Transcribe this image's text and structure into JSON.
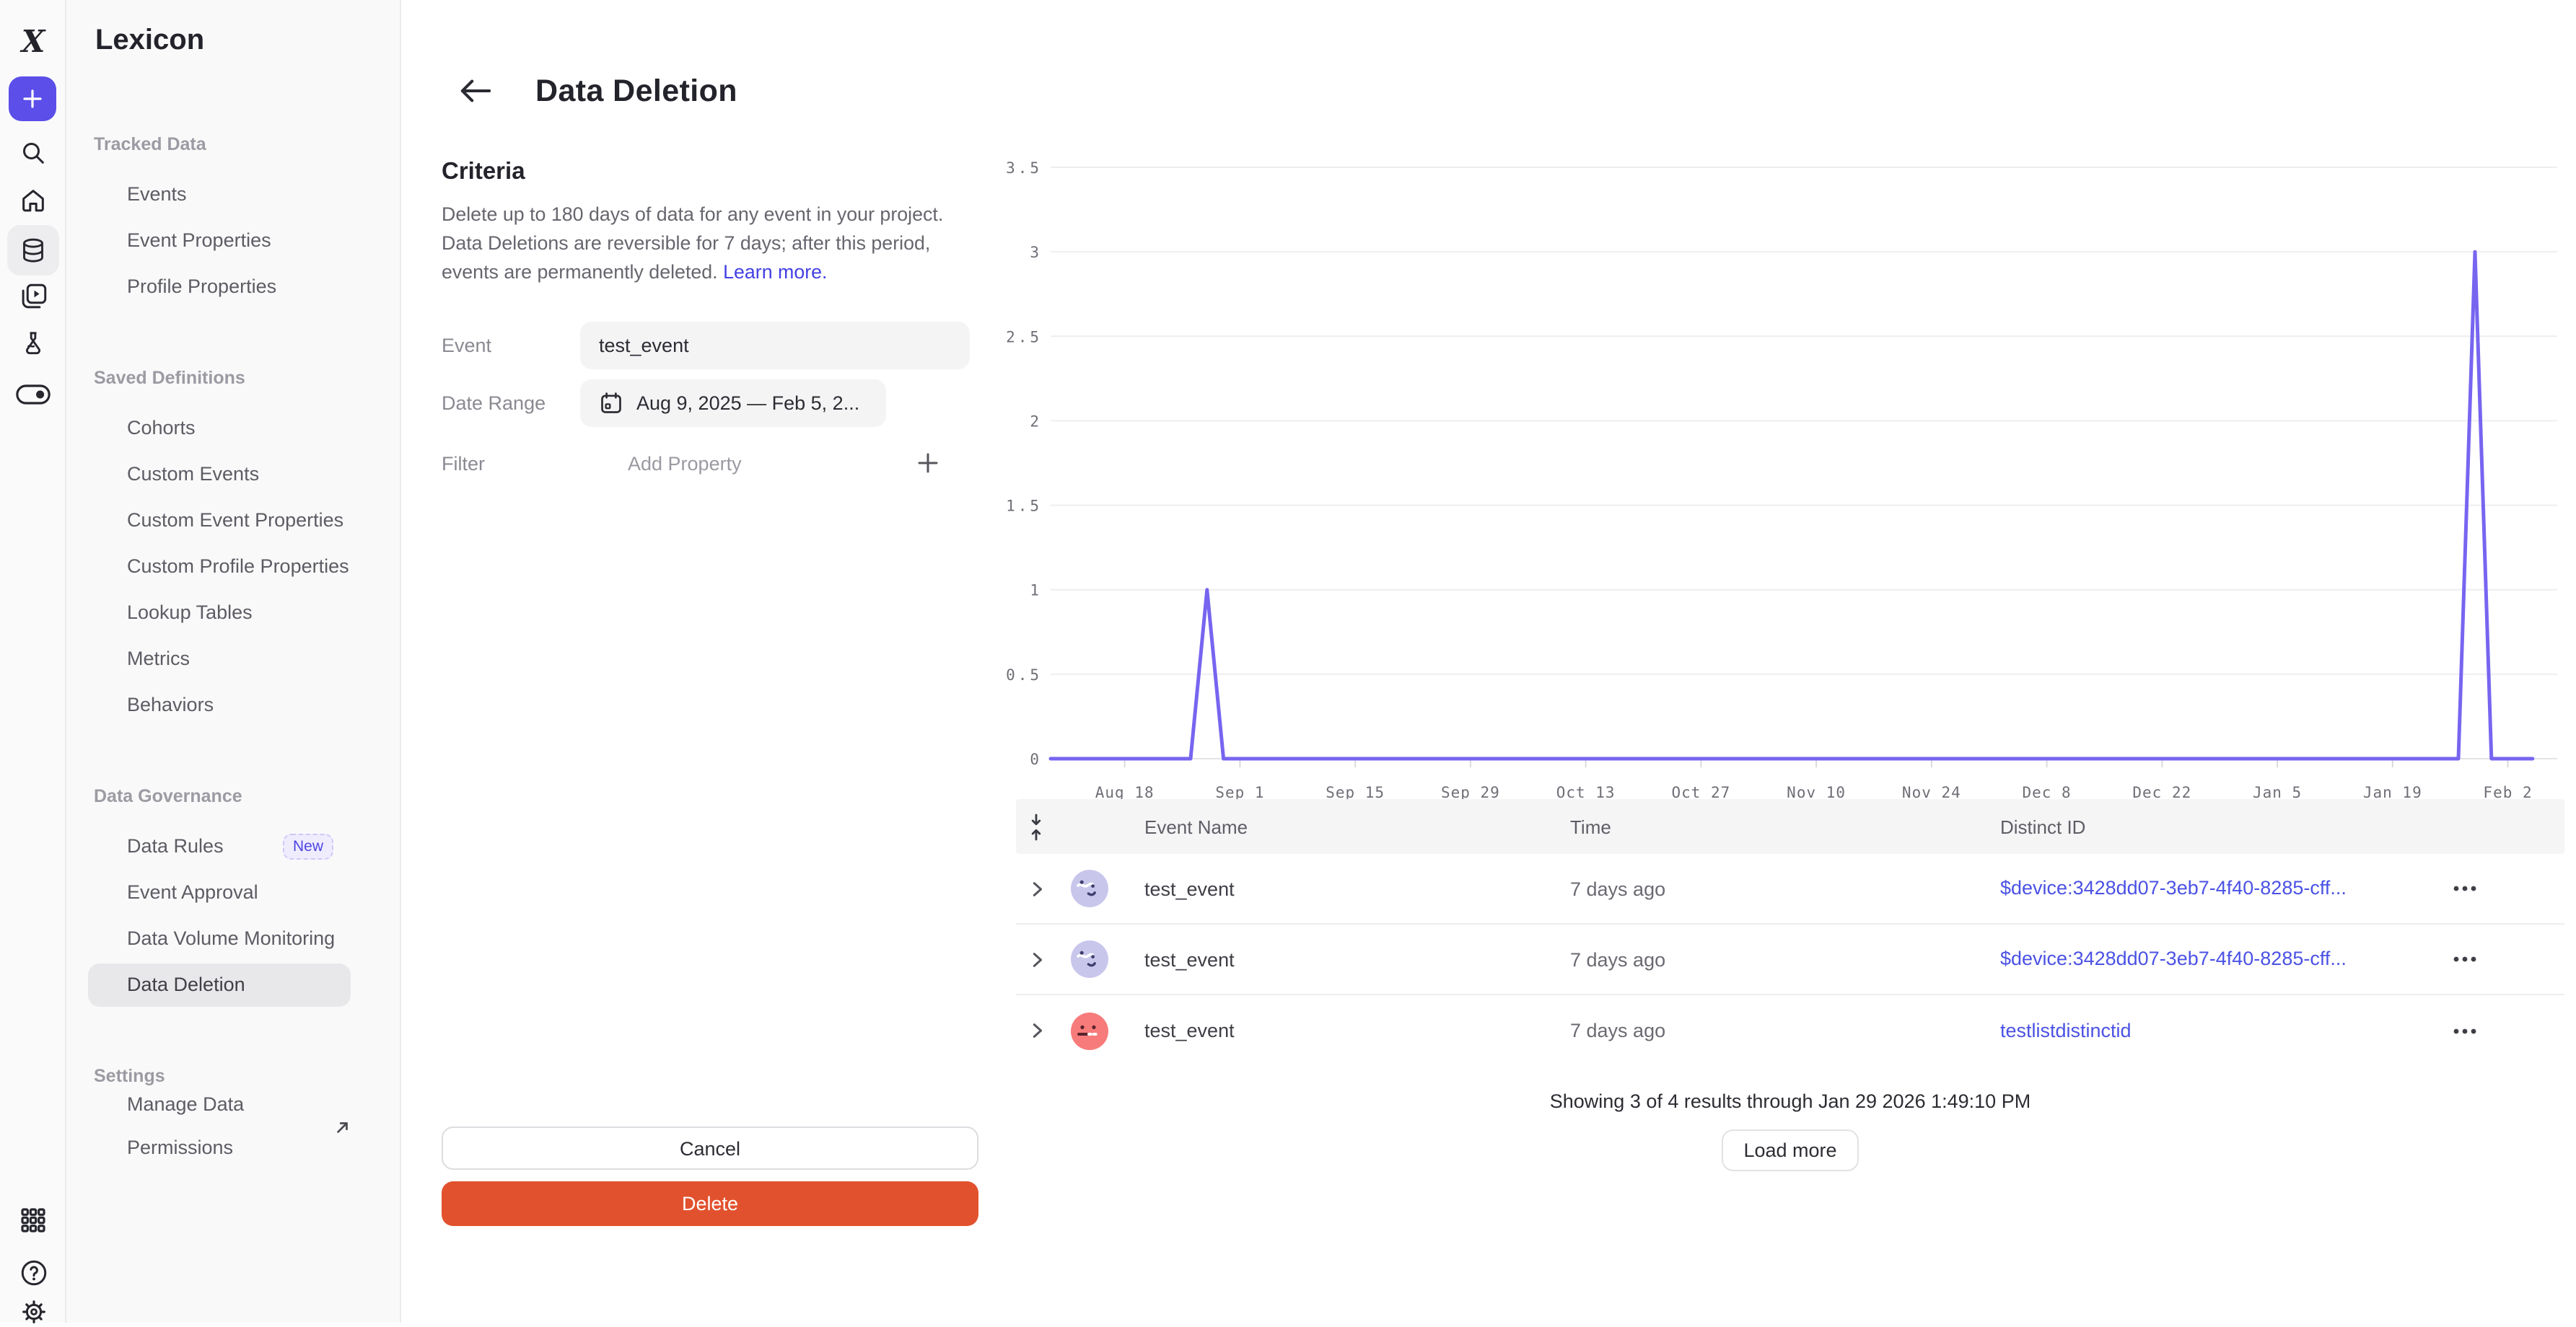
{
  "sidebar": {
    "title": "Lexicon",
    "sections": [
      {
        "label": "Tracked Data",
        "items": [
          {
            "label": "Events"
          },
          {
            "label": "Event Properties"
          },
          {
            "label": "Profile Properties"
          }
        ]
      },
      {
        "label": "Saved Definitions",
        "items": [
          {
            "label": "Cohorts"
          },
          {
            "label": "Custom Events"
          },
          {
            "label": "Custom Event Properties"
          },
          {
            "label": "Custom Profile Properties"
          },
          {
            "label": "Lookup Tables"
          },
          {
            "label": "Metrics"
          },
          {
            "label": "Behaviors"
          }
        ]
      },
      {
        "label": "Data Governance",
        "items": [
          {
            "label": "Data Rules",
            "badge": "New"
          },
          {
            "label": "Event Approval"
          },
          {
            "label": "Data Volume Monitoring"
          },
          {
            "label": "Data Deletion",
            "active": true
          }
        ]
      },
      {
        "label": "Settings",
        "items": [
          {
            "label": "Manage Data Permissions",
            "external": true
          }
        ]
      }
    ]
  },
  "rail": {
    "icons": [
      "mixpanel-logo",
      "create-plus",
      "search",
      "home",
      "data-management",
      "boards",
      "experiments",
      "feature-flags",
      "apps-grid",
      "help",
      "settings-gear"
    ]
  },
  "header": {
    "title": "Data Deletion"
  },
  "criteria": {
    "heading": "Criteria",
    "description": "Delete up to 180 days of data for any event in your project. Data Deletions are reversible for 7 days; after this period, events are permanently deleted.",
    "learn_more": "Learn more.",
    "fields": {
      "event": {
        "label": "Event",
        "value": "test_event"
      },
      "date_range": {
        "label": "Date Range",
        "value": "Aug 9, 2025 — Feb 5, 2..."
      },
      "filter": {
        "label": "Filter",
        "placeholder": "Add Property"
      }
    },
    "cancel_label": "Cancel",
    "delete_label": "Delete"
  },
  "chart_data": {
    "type": "line",
    "title": "",
    "xlabel": "",
    "ylabel": "",
    "grid": true,
    "legend": "none",
    "line_color": "#7765F0",
    "ylim": [
      0,
      3.5
    ],
    "y_ticks": [
      0,
      0.5,
      1,
      1.5,
      2,
      2.5,
      3,
      3.5
    ],
    "x_range": [
      "2025-08-09",
      "2026-02-05"
    ],
    "x_ticks": [
      {
        "label": "Aug 18",
        "date": "2025-08-18"
      },
      {
        "label": "Sep 1",
        "date": "2025-09-01"
      },
      {
        "label": "Sep 15",
        "date": "2025-09-15"
      },
      {
        "label": "Sep 29",
        "date": "2025-09-29"
      },
      {
        "label": "Oct 13",
        "date": "2025-10-13"
      },
      {
        "label": "Oct 27",
        "date": "2025-10-27"
      },
      {
        "label": "Nov 10",
        "date": "2025-11-10"
      },
      {
        "label": "Nov 24",
        "date": "2025-11-24"
      },
      {
        "label": "Dec 8",
        "date": "2025-12-08"
      },
      {
        "label": "Dec 22",
        "date": "2025-12-22"
      },
      {
        "label": "Jan 5",
        "date": "2026-01-05"
      },
      {
        "label": "Jan 19",
        "date": "2026-01-19"
      },
      {
        "label": "Feb 2",
        "date": "2026-02-02"
      }
    ],
    "series": [
      {
        "name": "test_event",
        "baseline": 0,
        "spikes": [
          {
            "date": "2025-08-28",
            "value": 1
          },
          {
            "date": "2026-01-29",
            "value": 3
          }
        ]
      }
    ]
  },
  "table": {
    "columns": [
      "Event Name",
      "Time",
      "Distinct ID"
    ],
    "rows": [
      {
        "event_name": "test_event",
        "time": "7 days ago",
        "distinct_id": "$device:3428dd07-3eb7-4f40-8285-cff...",
        "avatar_color": "#C9C6EC",
        "avatar_kind": "purple"
      },
      {
        "event_name": "test_event",
        "time": "7 days ago",
        "distinct_id": "$device:3428dd07-3eb7-4f40-8285-cff...",
        "avatar_color": "#C9C6EC",
        "avatar_kind": "purple"
      },
      {
        "event_name": "test_event",
        "time": "7 days ago",
        "distinct_id": "testlistdistinctid",
        "avatar_color": "#F77B7B",
        "avatar_kind": "red"
      }
    ],
    "footer": "Showing 3 of 4 results through Jan 29 2026 1:49:10 PM",
    "load_more_label": "Load more"
  },
  "colors": {
    "accent_purple": "#5B4EE9",
    "chart_line": "#7765F0",
    "link": "#4340E4",
    "table_link": "#4B52E4",
    "delete_button": "#E2512D",
    "badge_text": "#4F45E4"
  }
}
